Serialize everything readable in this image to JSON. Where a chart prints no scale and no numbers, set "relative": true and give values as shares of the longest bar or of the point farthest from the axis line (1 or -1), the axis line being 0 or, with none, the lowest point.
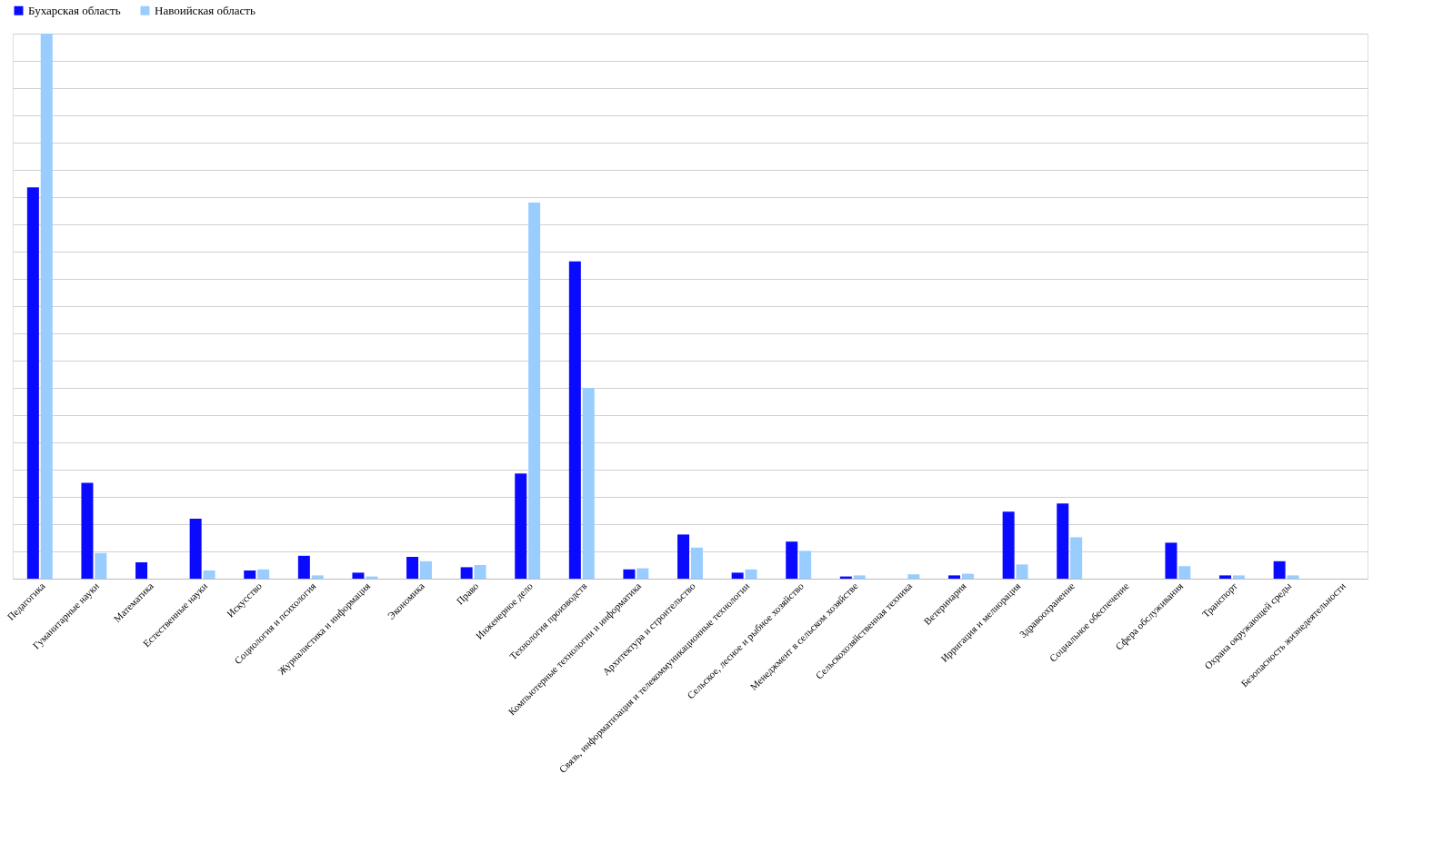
{
  "chart_data": {
    "type": "bar",
    "relative": true,
    "grid": "y",
    "legend": "top",
    "categories": [
      "Педагогика",
      "Гуманитарные науки",
      "Математика",
      "Естественные науки",
      "Искусство",
      "Социология и психология",
      "Журналистика и информация",
      "Экономика",
      "Право",
      "Инженерное дело",
      "Технология производств",
      "Компьютерные технологии и информатика",
      "Архитектура и строительство",
      "Связь, информатизация и телекоммуникационные технологии",
      "Сельское, лесное и рыбное хозяйство",
      "Менеджмент в сельском хозяйстве",
      "Сельскохозяйственная техника",
      "Ветеринария",
      "Ирригация и мелиорация",
      "Здравоохранение",
      "Социальное обеспечение",
      "Сфера обслуживания",
      "Транспорт",
      "Охрана окружающей среды",
      "Безопасность жизнедеятельности"
    ],
    "series": [
      {
        "name": "Бухарская область",
        "color": "#0a0aff",
        "values": [
          0.718,
          0.176,
          0.03,
          0.11,
          0.015,
          0.042,
          0.011,
          0.04,
          0.021,
          0.193,
          0.582,
          0.017,
          0.081,
          0.011,
          0.068,
          0.004,
          0,
          0.006,
          0.123,
          0.138,
          0,
          0.066,
          0.006,
          0.032,
          0
        ]
      },
      {
        "name": "Навоийская область",
        "color": "#99ccff",
        "values": [
          1,
          0.047,
          0,
          0.015,
          0.017,
          0.006,
          0.004,
          0.032,
          0.025,
          0.69,
          0.35,
          0.019,
          0.057,
          0.017,
          0.051,
          0.006,
          0.008,
          0.009,
          0.026,
          0.076,
          0,
          0.023,
          0.006,
          0.006,
          0
        ]
      }
    ]
  }
}
